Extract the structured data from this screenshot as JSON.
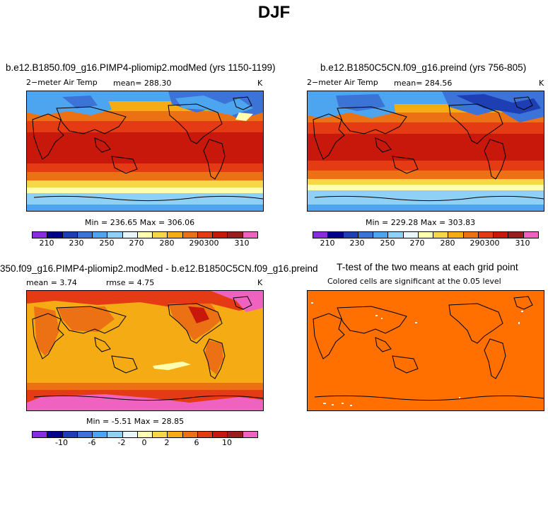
{
  "page_title": "DJF",
  "palette": [
    "#8a2be2",
    "#00008b",
    "#1e3fb4",
    "#3b74d6",
    "#4ea5ef",
    "#8fd0f7",
    "#e8f6fb",
    "#ffffb0",
    "#f7d74a",
    "#f4ab14",
    "#ec7014",
    "#e53b14",
    "#c8180c",
    "#9b1e1e",
    "#f062c0"
  ],
  "panels": {
    "top_left": {
      "title": "b.e12.B1850.f09_g16.PIMP4-pliomip2.modMed (yrs 1150-1199)",
      "left_label": "2−meter Air Temp",
      "mean_label": "mean= 288.30",
      "units": "K",
      "stats": "Min = 236.65 Max = 306.06",
      "ticks": [
        "210",
        "230",
        "250",
        "270",
        "280",
        "290",
        "300",
        "310"
      ]
    },
    "top_right": {
      "title": "b.e12.B1850C5CN.f09_g16.preind (yrs 756-805)",
      "left_label": "2−meter Air Temp",
      "mean_label": "mean= 284.56",
      "units": "K",
      "stats": "Min = 229.28 Max = 303.83",
      "ticks": [
        "210",
        "230",
        "250",
        "270",
        "280",
        "290",
        "300",
        "310"
      ]
    },
    "bottom_left": {
      "title": "350.f09_g16.PIMP4-pliomip2.modMed - b.e12.B1850C5CN.f09_g16.preind",
      "mean_label": "mean =    3.74",
      "rmse_label": "rmse =    4.75",
      "units": "K",
      "stats": "Min =  -5.51 Max =  28.85",
      "ticks": [
        "-10",
        "-6",
        "-2",
        "0",
        "2",
        "6",
        "10"
      ]
    },
    "bottom_right": {
      "title": "T-test of the two means at each grid point",
      "subtitle": "Colored cells are significant at the 0.05 level",
      "fill_color": "#ff7000"
    }
  }
}
